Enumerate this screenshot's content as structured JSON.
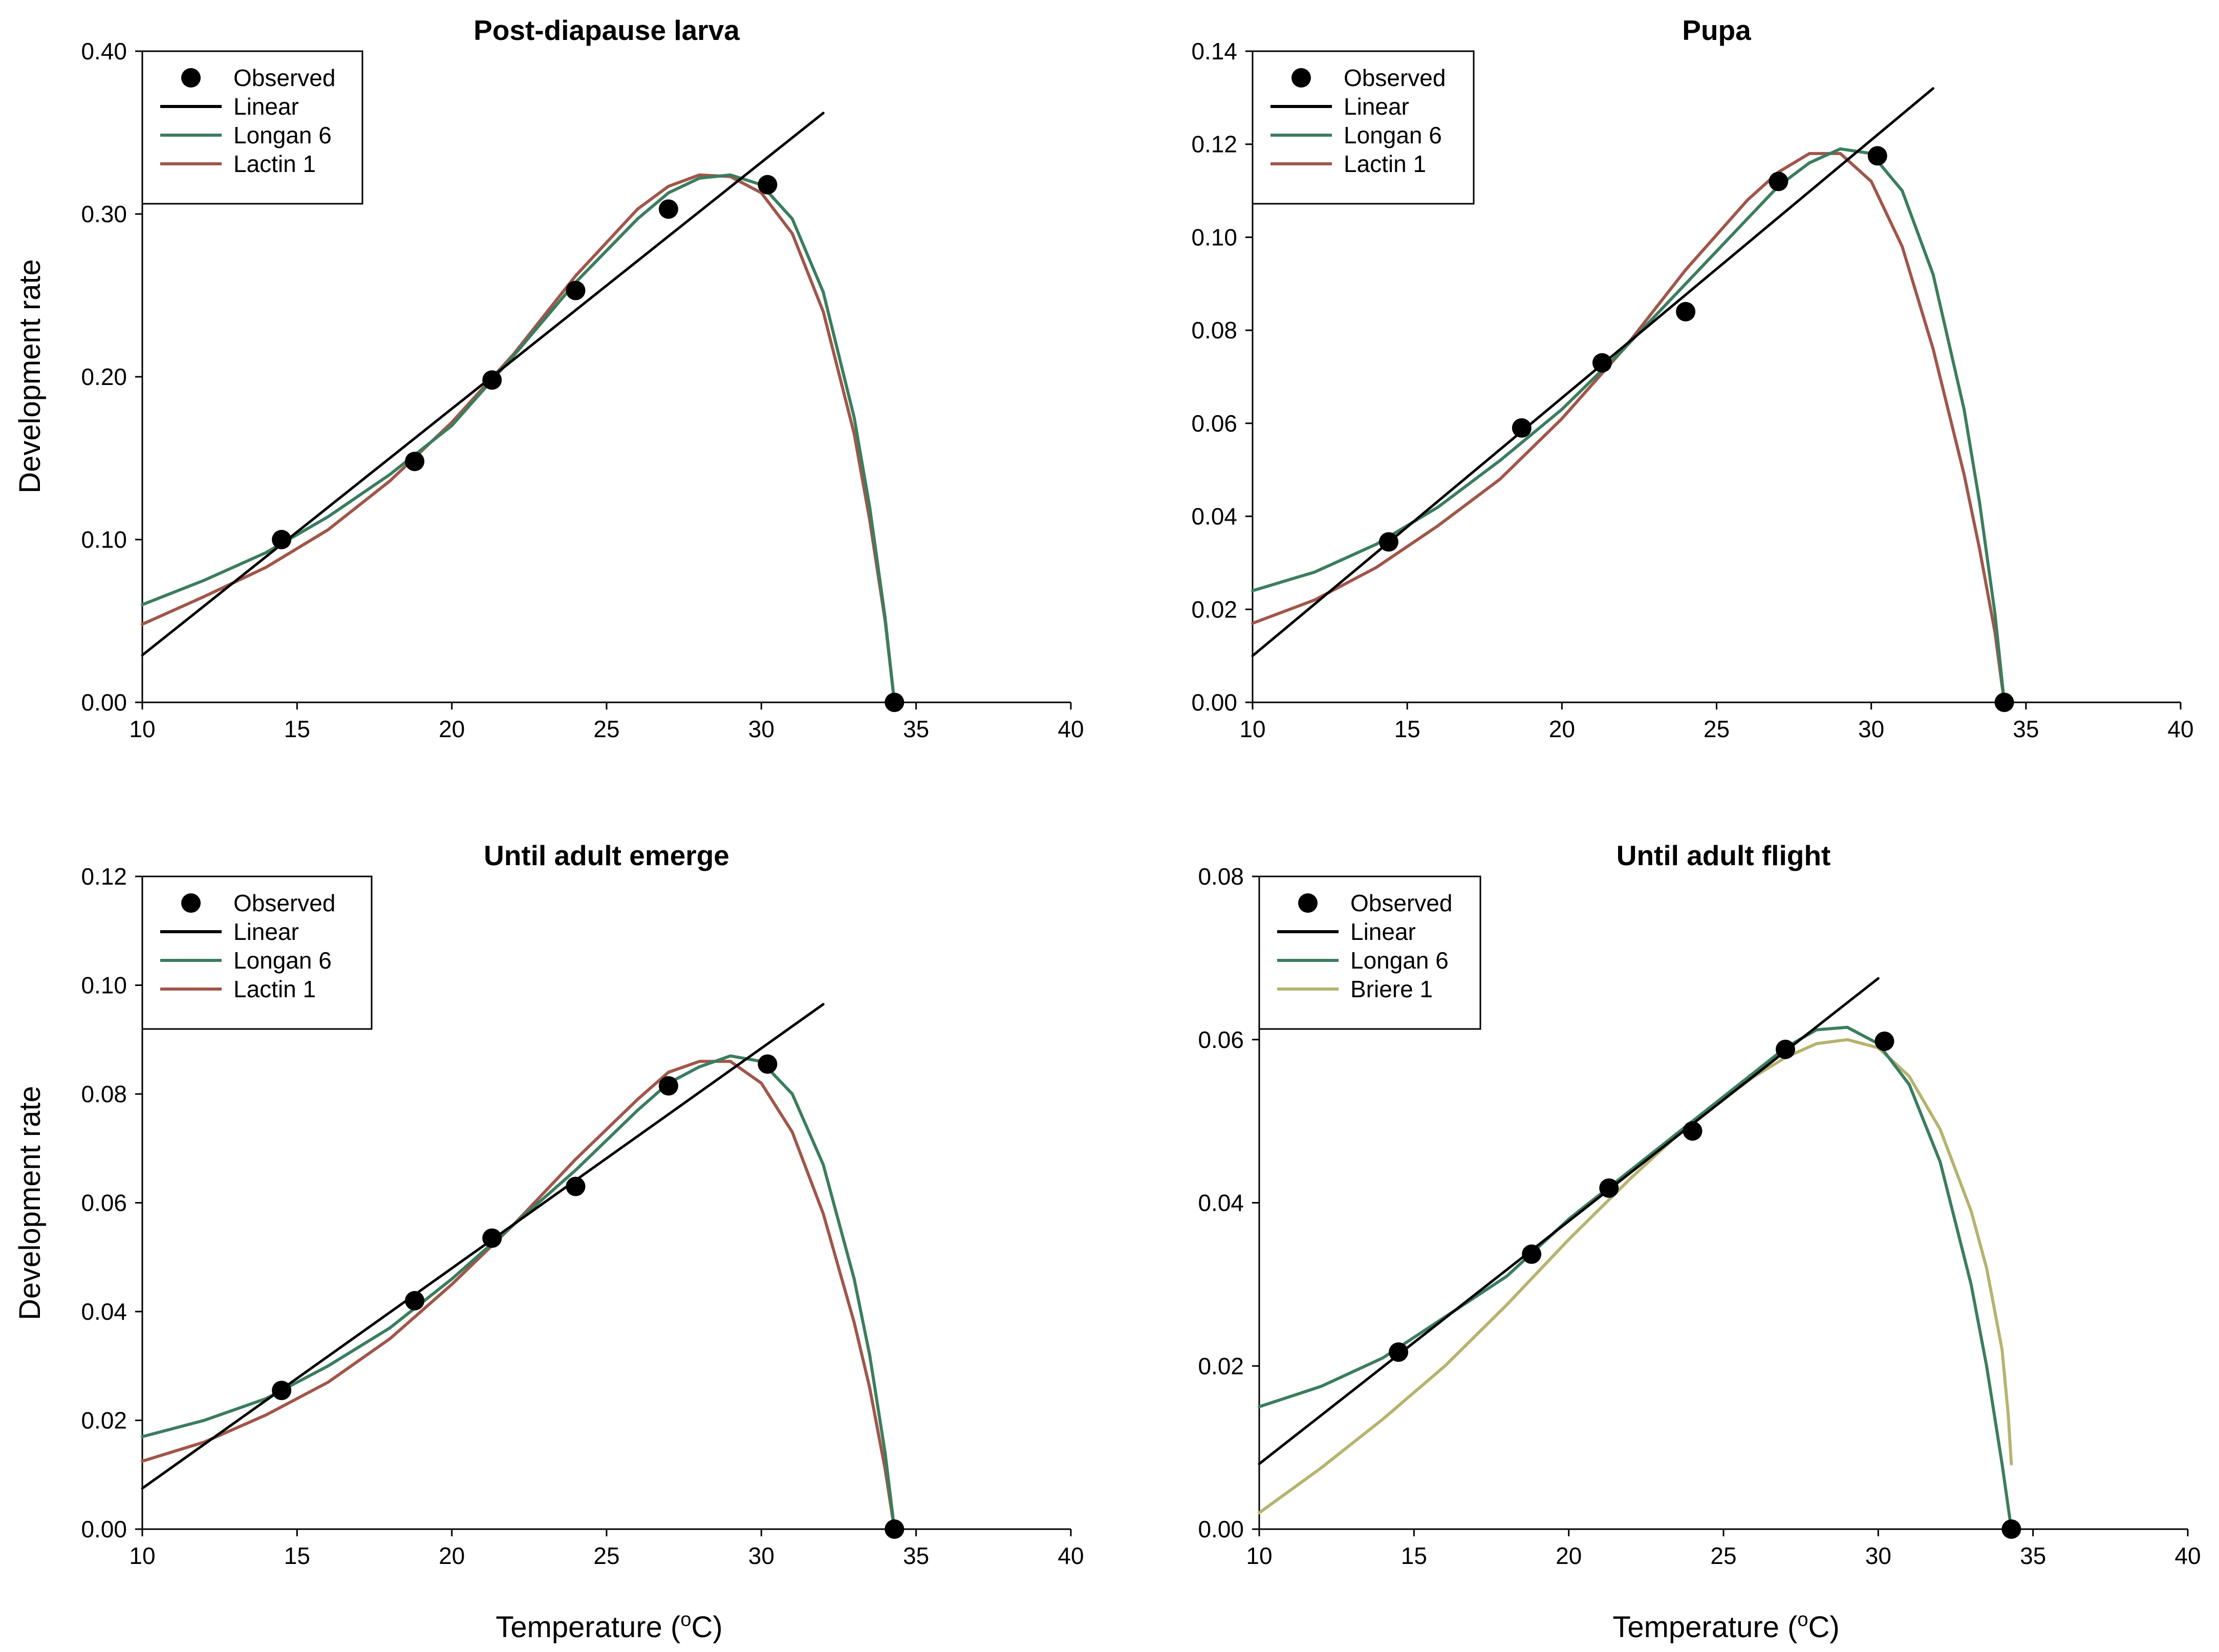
{
  "figure": {
    "y_axis_label": "Development rate",
    "x_axis_label": "Temperature (°C)",
    "x_axis_label_parts": {
      "prefix": "Temperature (",
      "sup": "o",
      "suffix": "C)"
    }
  },
  "colors": {
    "observed": "#000000",
    "linear": "#000000",
    "longan6": "#3b7d5e",
    "lactin1": "#a0564a",
    "briere1": "#b5b36e"
  },
  "chart_data": [
    {
      "type": "line",
      "title": "Post-diapause larva",
      "xlabel": "",
      "ylabel": "Development rate",
      "xlim": [
        10,
        40
      ],
      "ylim": [
        0,
        0.4
      ],
      "xticks": [
        "10",
        "15",
        "20",
        "25",
        "30",
        "35",
        "40"
      ],
      "yticks": [
        "0.00",
        "0.10",
        "0.20",
        "0.30",
        "0.40"
      ],
      "legend_position": "top-left",
      "series": [
        {
          "name": "Observed",
          "kind": "scatter",
          "color": "#000000",
          "x": [
            14.5,
            18.8,
            21.3,
            24.0,
            27.0,
            30.2,
            34.3
          ],
          "y": [
            0.1,
            0.148,
            0.198,
            0.253,
            0.303,
            0.318,
            0.0
          ]
        },
        {
          "name": "Linear",
          "kind": "line",
          "color": "#000000",
          "x": [
            10,
            32
          ],
          "y": [
            0.029,
            0.362
          ]
        },
        {
          "name": "Longan 6",
          "kind": "line",
          "color": "#3b7d5e",
          "x": [
            10,
            12,
            14,
            16,
            18,
            20,
            22,
            24,
            26,
            27,
            28,
            29,
            30,
            31,
            32,
            33,
            33.5,
            34,
            34.3
          ],
          "y": [
            0.06,
            0.075,
            0.092,
            0.114,
            0.14,
            0.17,
            0.213,
            0.258,
            0.297,
            0.313,
            0.322,
            0.324,
            0.318,
            0.297,
            0.252,
            0.175,
            0.12,
            0.052,
            0.0
          ]
        },
        {
          "name": "Lactin 1",
          "kind": "line",
          "color": "#a0564a",
          "x": [
            10,
            12,
            14,
            16,
            18,
            20,
            22,
            24,
            26,
            27,
            28,
            29,
            30,
            31,
            32,
            33,
            33.5,
            34,
            34.3
          ],
          "y": [
            0.048,
            0.065,
            0.083,
            0.106,
            0.136,
            0.172,
            0.214,
            0.262,
            0.303,
            0.317,
            0.324,
            0.323,
            0.313,
            0.288,
            0.24,
            0.165,
            0.112,
            0.05,
            0.0
          ]
        }
      ]
    },
    {
      "type": "line",
      "title": "Pupa",
      "xlabel": "",
      "ylabel": "",
      "xlim": [
        10,
        40
      ],
      "ylim": [
        0,
        0.14
      ],
      "xticks": [
        "10",
        "15",
        "20",
        "25",
        "30",
        "35",
        "40"
      ],
      "yticks": [
        "0.00",
        "0.02",
        "0.04",
        "0.06",
        "0.08",
        "0.10",
        "0.12",
        "0.14"
      ],
      "legend_position": "top-left",
      "series": [
        {
          "name": "Observed",
          "kind": "scatter",
          "color": "#000000",
          "x": [
            14.4,
            18.7,
            21.3,
            24.0,
            27.0,
            30.2,
            34.3
          ],
          "y": [
            0.0345,
            0.059,
            0.073,
            0.084,
            0.112,
            0.1175,
            0.0
          ]
        },
        {
          "name": "Linear",
          "kind": "line",
          "color": "#000000",
          "x": [
            10,
            32
          ],
          "y": [
            0.01,
            0.132
          ]
        },
        {
          "name": "Longan 6",
          "kind": "line",
          "color": "#3b7d5e",
          "x": [
            10,
            12,
            14,
            16,
            18,
            20,
            22,
            24,
            26,
            27,
            28,
            29,
            30,
            31,
            32,
            33,
            33.5,
            34,
            34.3
          ],
          "y": [
            0.024,
            0.028,
            0.034,
            0.042,
            0.052,
            0.063,
            0.076,
            0.09,
            0.104,
            0.111,
            0.116,
            0.119,
            0.118,
            0.11,
            0.092,
            0.063,
            0.043,
            0.019,
            0.0
          ]
        },
        {
          "name": "Lactin 1",
          "kind": "line",
          "color": "#a0564a",
          "x": [
            10,
            12,
            14,
            16,
            18,
            20,
            22,
            24,
            26,
            27,
            28,
            29,
            30,
            31,
            32,
            33,
            33.5,
            34,
            34.3
          ],
          "y": [
            0.017,
            0.022,
            0.029,
            0.038,
            0.048,
            0.061,
            0.076,
            0.093,
            0.108,
            0.114,
            0.118,
            0.118,
            0.112,
            0.098,
            0.076,
            0.049,
            0.033,
            0.015,
            0.0
          ]
        }
      ]
    },
    {
      "type": "line",
      "title": "Until adult emerge",
      "xlabel": "Temperature (°C)",
      "ylabel": "Development rate",
      "xlim": [
        10,
        40
      ],
      "ylim": [
        0,
        0.12
      ],
      "xticks": [
        "10",
        "15",
        "20",
        "25",
        "30",
        "35",
        "40"
      ],
      "yticks": [
        "0.00",
        "0.02",
        "0.04",
        "0.06",
        "0.08",
        "0.10",
        "0.12"
      ],
      "legend_position": "top-left",
      "series": [
        {
          "name": "Observed",
          "kind": "scatter",
          "color": "#000000",
          "x": [
            14.5,
            18.8,
            21.3,
            24.0,
            27.0,
            30.2,
            34.3
          ],
          "y": [
            0.0255,
            0.042,
            0.0535,
            0.063,
            0.0815,
            0.0855,
            0.0
          ]
        },
        {
          "name": "Linear",
          "kind": "line",
          "color": "#000000",
          "x": [
            10,
            32
          ],
          "y": [
            0.0075,
            0.0965
          ]
        },
        {
          "name": "Longan 6",
          "kind": "line",
          "color": "#3b7d5e",
          "x": [
            10,
            12,
            14,
            16,
            18,
            20,
            22,
            24,
            26,
            27,
            28,
            29,
            30,
            31,
            32,
            33,
            33.5,
            34,
            34.3
          ],
          "y": [
            0.017,
            0.02,
            0.024,
            0.03,
            0.037,
            0.046,
            0.056,
            0.066,
            0.077,
            0.082,
            0.085,
            0.087,
            0.086,
            0.08,
            0.067,
            0.046,
            0.032,
            0.014,
            0.0
          ]
        },
        {
          "name": "Lactin 1",
          "kind": "line",
          "color": "#a0564a",
          "x": [
            10,
            12,
            14,
            16,
            18,
            20,
            22,
            24,
            26,
            27,
            28,
            29,
            30,
            31,
            32,
            33,
            33.5,
            34,
            34.3
          ],
          "y": [
            0.0125,
            0.016,
            0.021,
            0.027,
            0.035,
            0.045,
            0.056,
            0.068,
            0.079,
            0.084,
            0.086,
            0.086,
            0.082,
            0.073,
            0.058,
            0.038,
            0.026,
            0.011,
            0.0
          ]
        }
      ]
    },
    {
      "type": "line",
      "title": "Until adult flight",
      "xlabel": "Temperature (°C)",
      "ylabel": "",
      "xlim": [
        10,
        40
      ],
      "ylim": [
        0,
        0.08
      ],
      "xticks": [
        "10",
        "15",
        "20",
        "25",
        "30",
        "35",
        "40"
      ],
      "yticks": [
        "0.00",
        "0.02",
        "0.04",
        "0.06",
        "0.08"
      ],
      "legend_position": "top-left",
      "series": [
        {
          "name": "Observed",
          "kind": "scatter",
          "color": "#000000",
          "x": [
            14.5,
            18.8,
            21.3,
            24.0,
            27.0,
            30.2,
            34.3
          ],
          "y": [
            0.0217,
            0.0337,
            0.0418,
            0.0488,
            0.0588,
            0.0598,
            0.0
          ]
        },
        {
          "name": "Linear",
          "kind": "line",
          "color": "#000000",
          "x": [
            10,
            30
          ],
          "y": [
            0.008,
            0.0675
          ]
        },
        {
          "name": "Longan 6",
          "kind": "line",
          "color": "#3b7d5e",
          "x": [
            10,
            12,
            14,
            16,
            18,
            20,
            22,
            24,
            26,
            27,
            28,
            29,
            30,
            31,
            32,
            33,
            33.5,
            34,
            34.3
          ],
          "y": [
            0.015,
            0.0175,
            0.021,
            0.026,
            0.031,
            0.038,
            0.044,
            0.05,
            0.056,
            0.059,
            0.0612,
            0.0615,
            0.0595,
            0.0545,
            0.045,
            0.03,
            0.02,
            0.008,
            0.0
          ]
        },
        {
          "name": "Briere 1",
          "kind": "line",
          "color": "#b5b36e",
          "x": [
            10,
            12,
            14,
            16,
            18,
            20,
            22,
            24,
            26,
            27,
            28,
            29,
            30,
            31,
            32,
            33,
            33.5,
            34,
            34.2,
            34.3
          ],
          "y": [
            0.002,
            0.0075,
            0.0135,
            0.02,
            0.0275,
            0.0355,
            0.043,
            0.05,
            0.0555,
            0.0578,
            0.0595,
            0.06,
            0.059,
            0.0555,
            0.049,
            0.039,
            0.032,
            0.022,
            0.014,
            0.008
          ]
        }
      ]
    }
  ]
}
